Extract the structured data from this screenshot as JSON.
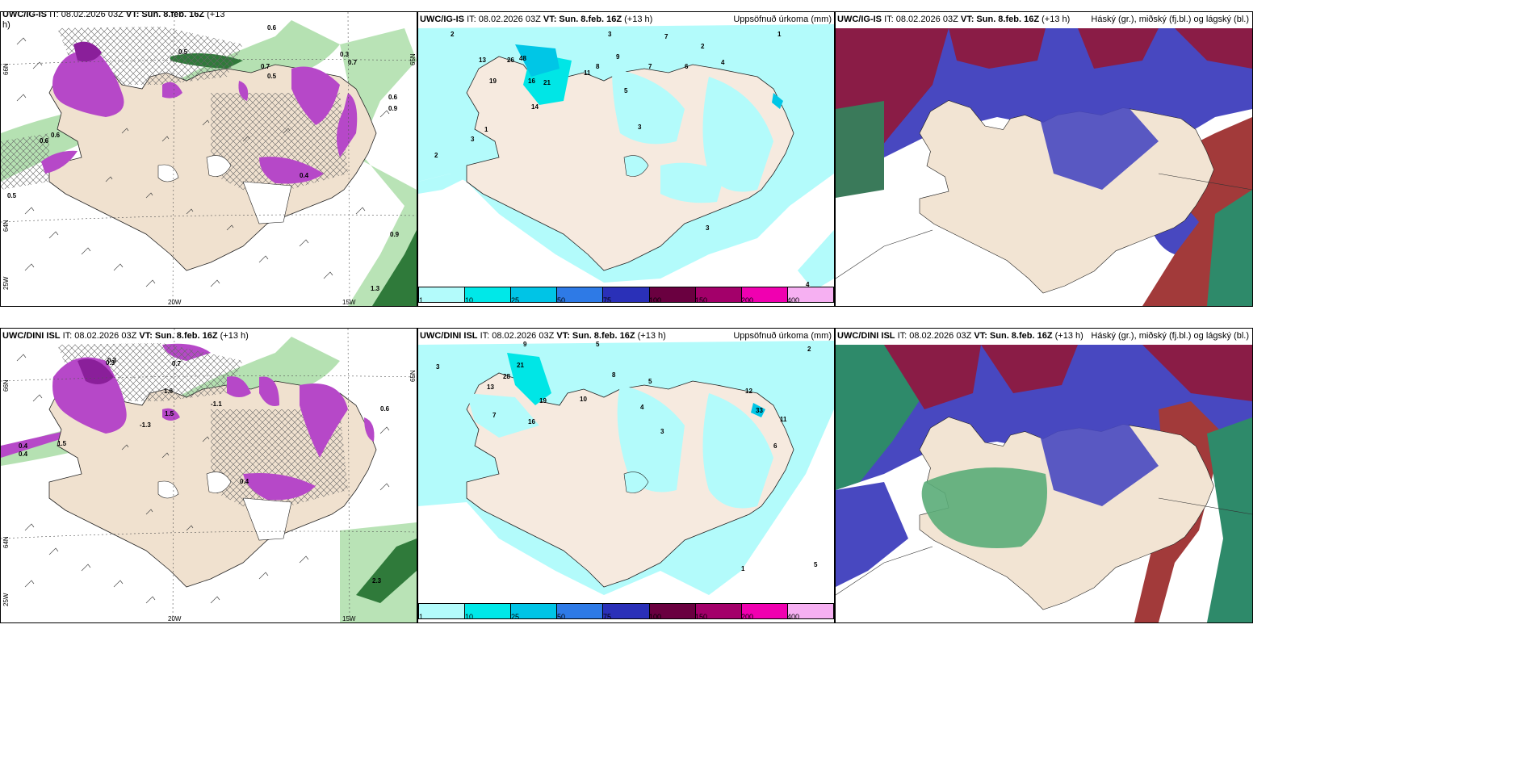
{
  "rows": [
    {
      "model": "UWC/IG-IS",
      "panels": [
        {
          "id": "wind",
          "title_model": "UWC/IG-IS",
          "title_rest": "IT: 08.02.2026 03Z",
          "vt_label": "VT:",
          "vt": "Sun. 8.feb. 16Z",
          "lead": "(+13",
          "lead2": "h)",
          "right": ""
        },
        {
          "id": "precip",
          "title_model": "UWC/IG-IS",
          "title_rest": "IT: 08.02.2026 03Z",
          "vt_label": "VT:",
          "vt": "Sun. 8.feb. 16Z",
          "lead": "(+13 h)",
          "right": "Uppsöfnuð úrkoma (mm)"
        },
        {
          "id": "cloud",
          "title_model": "UWC/IG-IS",
          "title_rest": "IT: 08.02.2026 03Z",
          "vt_label": "VT:",
          "vt": "Sun. 8.feb. 16Z",
          "lead": "(+13 h)",
          "right": "Háský (gr.), miðský (fj.bl.) og lágský (bl.)"
        }
      ]
    },
    {
      "model": "UWC/DINI ISL",
      "panels": [
        {
          "id": "wind",
          "title_model": "UWC/DINI ISL",
          "title_rest": "IT: 08.02.2026 03Z",
          "vt_label": "VT:",
          "vt": "Sun. 8.feb. 16Z",
          "lead": "(+13 h)",
          "lead2": "",
          "right": ""
        },
        {
          "id": "precip",
          "title_model": "UWC/DINI ISL",
          "title_rest": "IT: 08.02.2026 03Z",
          "vt_label": "VT:",
          "vt": "Sun. 8.feb. 16Z",
          "lead": "(+13 h)",
          "right": "Uppsöfnuð úrkoma (mm)"
        },
        {
          "id": "cloud",
          "title_model": "UWC/DINI ISL",
          "title_rest": "IT: 08.02.2026 03Z",
          "vt_label": "VT:",
          "vt": "Sun. 8.feb. 16Z",
          "lead": "(+13 h)",
          "right": "Háský (gr.), miðský (fj.bl.) og lágský (bl.)"
        }
      ]
    }
  ],
  "axes": {
    "lat_labels": [
      "66N",
      "64N",
      "25W"
    ],
    "lat_right": "65N",
    "lon_labels": [
      "20W",
      "15W"
    ]
  },
  "colorbar": {
    "labels": [
      "1",
      "10",
      "25",
      "50",
      "75",
      "100",
      "150",
      "200",
      "400"
    ],
    "colors": [
      "#b3fbfb",
      "#00e8e8",
      "#00c4e6",
      "#2e7ae6",
      "#2a30b8",
      "#6a0040",
      "#a3006a",
      "#f000b0",
      "#f6b0f2"
    ]
  },
  "colors": {
    "land": "#f2e4d3",
    "sea_precip": "#b3fbfb",
    "snow_purple": "#b846c8",
    "rain_green": "#9ed69a",
    "high_cloud_red": "#8c1c46",
    "mid_cloud_blue": "#4a4ac0",
    "low_cloud_green": "#4aa070"
  },
  "wind_values_top": [
    "0.5",
    "0.6",
    "0.7",
    "0.5",
    "0.6",
    "0.9",
    "0.3",
    "0.6",
    "0.5",
    "0.9",
    "1.3",
    "0.6",
    "0.4",
    "0.7"
  ],
  "wind_values_bottom": [
    "0.3",
    "0.7",
    "1.6",
    "-1.1",
    "-1.3",
    "1.5",
    "0.4",
    "0.6",
    "0.4",
    "0.3",
    "1.5",
    "0.4",
    "2.3"
  ],
  "precip_values_top": [
    "2",
    "3",
    "7",
    "2",
    "1",
    "3",
    "19",
    "13",
    "26",
    "48",
    "16",
    "21",
    "14",
    "11",
    "9",
    "8",
    "7",
    "6",
    "5",
    "4",
    "3",
    "2",
    "1",
    "3",
    "4"
  ],
  "precip_values_bottom": [
    "3",
    "5",
    "9",
    "21",
    "28",
    "13",
    "19",
    "16",
    "10",
    "8",
    "7",
    "6",
    "5",
    "4",
    "3",
    "33",
    "12",
    "11",
    "2",
    "1",
    "5"
  ]
}
